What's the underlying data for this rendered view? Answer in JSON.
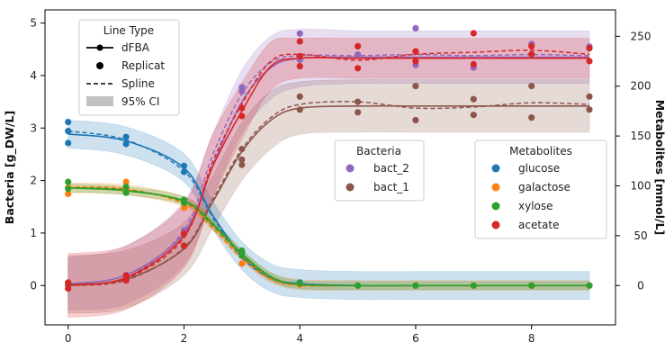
{
  "chart_data": {
    "type": "line",
    "xlabel": "",
    "ylabel": "Bacteria [g_DW/L]",
    "y2label": "Metabolites [mmol/L]",
    "xlim": [
      -0.4,
      9.45
    ],
    "ylim": [
      -0.75,
      5.25
    ],
    "y2lim": [
      -39.5,
      276.5
    ],
    "xticks": [
      "0",
      "2",
      "4",
      "6",
      "8"
    ],
    "yticks": [
      "0",
      "1",
      "2",
      "3",
      "4",
      "5"
    ],
    "y2ticks": [
      "0",
      "50",
      "100",
      "150",
      "200",
      "250"
    ],
    "legend_line_type": {
      "title": "Line Type",
      "entries": [
        "dFBA",
        "Replicat",
        "Spline",
        "95% CI"
      ]
    },
    "legend_bacteria": {
      "title": "Bacteria",
      "entries": [
        {
          "name": "bact_2",
          "color": "#9467bd"
        },
        {
          "name": "bact_1",
          "color": "#8c564b"
        }
      ]
    },
    "legend_metabolites": {
      "title": "Metabolites",
      "entries": [
        {
          "name": "glucose",
          "color": "#1f77b4"
        },
        {
          "name": "galactose",
          "color": "#ff7f0e"
        },
        {
          "name": "xylose",
          "color": "#2ca02c"
        },
        {
          "name": "acetate",
          "color": "#d62728"
        }
      ]
    },
    "series": [
      {
        "name": "bact_2",
        "axis": "left",
        "color": "#9467bd",
        "x": [
          0,
          1,
          2,
          2.5,
          3,
          3.5,
          4,
          5,
          6,
          7,
          8,
          9
        ],
        "dfba": [
          0.03,
          0.2,
          1.0,
          2.3,
          3.5,
          4.15,
          4.33,
          4.35,
          4.35,
          4.35,
          4.35,
          4.35
        ],
        "spline": [
          0.0,
          0.15,
          1.05,
          2.5,
          3.65,
          4.25,
          4.38,
          4.38,
          4.4,
          4.38,
          4.4,
          4.38
        ],
        "ci": [
          0.5,
          0.55,
          0.6,
          0.6,
          0.6,
          0.6,
          0.55,
          0.5,
          0.5,
          0.5,
          0.5,
          0.5
        ],
        "replicates": [
          [
            0,
            0.05
          ],
          [
            1,
            0.2
          ],
          [
            2,
            1.05
          ],
          [
            3,
            3.78
          ],
          [
            3,
            3.7
          ],
          [
            4,
            4.8
          ],
          [
            4,
            4.3
          ],
          [
            5,
            4.4
          ],
          [
            6,
            4.9
          ],
          [
            6,
            4.2
          ],
          [
            7,
            4.15
          ],
          [
            8,
            4.6
          ],
          [
            9,
            4.55
          ]
        ]
      },
      {
        "name": "bact_1",
        "axis": "left",
        "color": "#8c564b",
        "x": [
          0,
          1,
          2,
          2.5,
          3,
          3.5,
          4,
          5,
          6,
          7,
          8,
          9
        ],
        "dfba": [
          0.02,
          0.12,
          0.7,
          1.6,
          2.55,
          3.15,
          3.38,
          3.42,
          3.42,
          3.42,
          3.42,
          3.42
        ],
        "spline": [
          0.0,
          0.1,
          0.72,
          1.65,
          2.6,
          3.2,
          3.45,
          3.5,
          3.38,
          3.4,
          3.48,
          3.45
        ],
        "ci": [
          0.55,
          0.55,
          0.5,
          0.5,
          0.55,
          0.55,
          0.5,
          0.5,
          0.5,
          0.5,
          0.5,
          0.5
        ],
        "replicates": [
          [
            0,
            0.0
          ],
          [
            1,
            0.1
          ],
          [
            2,
            0.75
          ],
          [
            3,
            2.3
          ],
          [
            3,
            2.6
          ],
          [
            3,
            2.4
          ],
          [
            4,
            3.6
          ],
          [
            4,
            3.35
          ],
          [
            5,
            3.5
          ],
          [
            5,
            3.3
          ],
          [
            6,
            3.8
          ],
          [
            6,
            3.15
          ],
          [
            7,
            3.55
          ],
          [
            7,
            3.25
          ],
          [
            8,
            3.8
          ],
          [
            8,
            3.2
          ],
          [
            9,
            3.6
          ],
          [
            9,
            3.35
          ]
        ]
      },
      {
        "name": "glucose",
        "axis": "right",
        "color": "#1f77b4",
        "x": [
          0,
          1,
          2,
          2.5,
          3,
          3.5,
          4,
          5,
          6,
          7,
          8,
          9
        ],
        "dfba": [
          152,
          145,
          118,
          70,
          30,
          8,
          2,
          0,
          0,
          0,
          0,
          0
        ],
        "spline": [
          155,
          146,
          115,
          68,
          28,
          7,
          1,
          0,
          0,
          0,
          0,
          0
        ],
        "ci": [
          14,
          14,
          14,
          14,
          14,
          14,
          14,
          14,
          14,
          14,
          14,
          14
        ],
        "replicates": [
          [
            0,
            164
          ],
          [
            0,
            155
          ],
          [
            0,
            143
          ],
          [
            1,
            149
          ],
          [
            1,
            142
          ],
          [
            2,
            120
          ],
          [
            2,
            114
          ],
          [
            3,
            33
          ],
          [
            4,
            3
          ],
          [
            5,
            0
          ],
          [
            6,
            0
          ],
          [
            7,
            0
          ],
          [
            8,
            0
          ],
          [
            9,
            0
          ]
        ]
      },
      {
        "name": "galactose",
        "axis": "right",
        "color": "#ff7f0e",
        "x": [
          0,
          1,
          2,
          2.5,
          3,
          3.5,
          4,
          5,
          6,
          7,
          8,
          9
        ],
        "dfba": [
          98,
          96,
          84,
          60,
          30,
          8,
          1,
          0,
          0,
          0,
          0,
          0
        ],
        "spline": [
          99,
          97,
          82,
          57,
          27,
          6,
          0,
          0,
          0,
          0,
          0,
          0
        ],
        "ci": [
          5,
          5,
          5,
          5,
          5,
          5,
          5,
          5,
          5,
          5,
          5,
          5
        ],
        "replicates": [
          [
            0,
            92
          ],
          [
            0,
            98
          ],
          [
            1,
            104
          ],
          [
            1,
            95
          ],
          [
            2,
            78
          ],
          [
            3,
            22
          ],
          [
            4,
            1
          ],
          [
            5,
            0
          ],
          [
            6,
            0
          ],
          [
            7,
            0
          ],
          [
            8,
            0
          ],
          [
            9,
            0
          ]
        ]
      },
      {
        "name": "xylose",
        "axis": "right",
        "color": "#2ca02c",
        "x": [
          0,
          1,
          2,
          2.5,
          3,
          3.5,
          4,
          5,
          6,
          7,
          8,
          9
        ],
        "dfba": [
          98,
          95,
          85,
          62,
          32,
          9,
          1,
          0,
          0,
          0,
          0,
          0
        ],
        "spline": [
          98,
          96,
          84,
          60,
          30,
          8,
          1,
          0,
          0,
          0,
          0,
          0
        ],
        "ci": [
          4,
          4,
          4,
          4,
          4,
          4,
          4,
          4,
          4,
          4,
          4,
          4
        ],
        "replicates": [
          [
            0,
            104
          ],
          [
            0,
            97
          ],
          [
            1,
            99
          ],
          [
            1,
            93
          ],
          [
            2,
            83
          ],
          [
            2,
            86
          ],
          [
            3,
            35
          ],
          [
            3,
            30
          ],
          [
            4,
            2
          ],
          [
            5,
            0
          ],
          [
            6,
            0
          ],
          [
            7,
            0
          ],
          [
            8,
            0
          ],
          [
            9,
            0
          ]
        ]
      },
      {
        "name": "acetate",
        "axis": "right",
        "color": "#d62728",
        "x": [
          0,
          1,
          2,
          2.5,
          3,
          3.5,
          4,
          5,
          6,
          7,
          8,
          9
        ],
        "dfba": [
          0,
          8,
          50,
          120,
          175,
          220,
          228,
          228,
          228,
          228,
          228,
          228
        ],
        "spline": [
          0,
          7,
          48,
          125,
          182,
          225,
          232,
          226,
          232,
          234,
          236,
          232
        ],
        "ci": [
          32,
          32,
          32,
          32,
          28,
          24,
          20,
          20,
          20,
          20,
          20,
          20
        ],
        "replicates": [
          [
            0,
            -3
          ],
          [
            0,
            3
          ],
          [
            1,
            5
          ],
          [
            1,
            10
          ],
          [
            2,
            40
          ],
          [
            2,
            52
          ],
          [
            3,
            178
          ],
          [
            3,
            170
          ],
          [
            4,
            245
          ],
          [
            4,
            230
          ],
          [
            4,
            220
          ],
          [
            5,
            240
          ],
          [
            5,
            218
          ],
          [
            6,
            235
          ],
          [
            6,
            225
          ],
          [
            7,
            253
          ],
          [
            7,
            222
          ],
          [
            8,
            240
          ],
          [
            8,
            232
          ],
          [
            9,
            238
          ],
          [
            9,
            225
          ]
        ]
      }
    ]
  }
}
